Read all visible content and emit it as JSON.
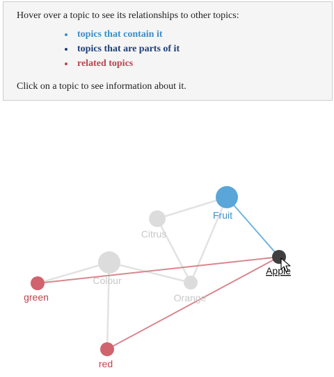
{
  "legend": {
    "intro": "Hover over a topic to see its relationships to other topics:",
    "items": [
      {
        "label": "topics that contain it",
        "color": "#3a8fc6"
      },
      {
        "label": "topics that are parts of it",
        "color": "#1e3f78"
      },
      {
        "label": "related topics",
        "color": "#c0424f"
      }
    ],
    "outro": "Click on a topic to see information about it."
  },
  "graph": {
    "nodes": [
      {
        "id": "fruit",
        "label": "Fruit",
        "state": "container",
        "color": "#5aa6d9",
        "label_color": "#3a8fc6"
      },
      {
        "id": "citrus",
        "label": "Citrus",
        "state": "dimmed",
        "color": "#dcdcdc",
        "label_color": "#c8c8c8"
      },
      {
        "id": "colour",
        "label": "Colour",
        "state": "dimmed",
        "color": "#dcdcdc",
        "label_color": "#c8c8c8"
      },
      {
        "id": "orange",
        "label": "Orange",
        "state": "dimmed",
        "color": "#dcdcdc",
        "label_color": "#c8c8c8"
      },
      {
        "id": "apple",
        "label": "Apple",
        "state": "hovered",
        "color": "#3f3f3f",
        "label_color": "#111111"
      },
      {
        "id": "green",
        "label": "green",
        "state": "related",
        "color": "#d0636e",
        "label_color": "#c0424f"
      },
      {
        "id": "red",
        "label": "red",
        "state": "related",
        "color": "#d0636e",
        "label_color": "#c0424f"
      }
    ],
    "edges": [
      {
        "source": "citrus",
        "target": "fruit",
        "kind": "dimmed"
      },
      {
        "source": "citrus",
        "target": "orange",
        "kind": "dimmed"
      },
      {
        "source": "fruit",
        "target": "orange",
        "kind": "dimmed"
      },
      {
        "source": "colour",
        "target": "orange",
        "kind": "dimmed"
      },
      {
        "source": "colour",
        "target": "green",
        "kind": "dimmed"
      },
      {
        "source": "colour",
        "target": "red",
        "kind": "dimmed"
      },
      {
        "source": "fruit",
        "target": "apple",
        "kind": "contains"
      },
      {
        "source": "green",
        "target": "apple",
        "kind": "related"
      },
      {
        "source": "red",
        "target": "apple",
        "kind": "related"
      }
    ],
    "edge_colors": {
      "dimmed": "#e2e2e2",
      "contains": "#6fb3dd",
      "related": "#d9868e"
    }
  }
}
